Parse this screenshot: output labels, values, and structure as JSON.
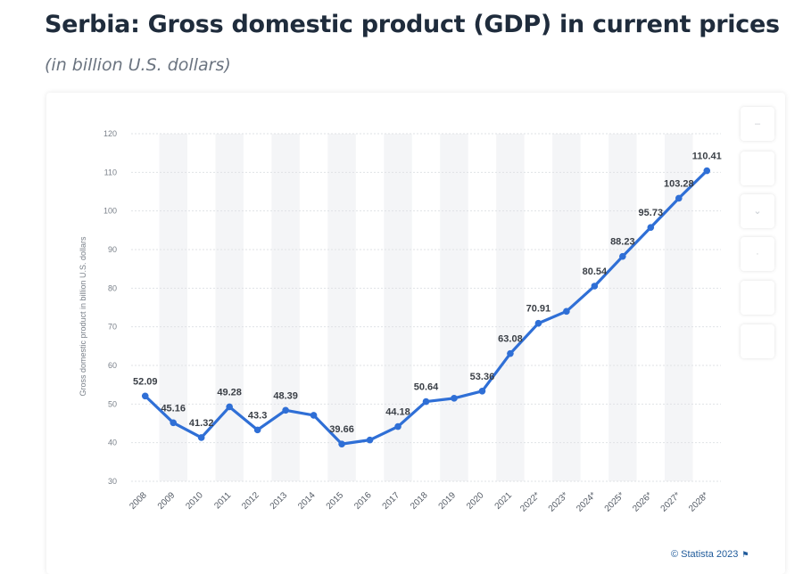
{
  "header": {
    "title": "Serbia: Gross domestic product (GDP) in current prices",
    "subtitle": "(in billion U.S. dollars)"
  },
  "chart_data": {
    "type": "line",
    "title": "Serbia: Gross domestic product (GDP) in current prices",
    "subtitle": "(in billion U.S. dollars)",
    "xlabel": "",
    "ylabel": "Gross domestic product in billion U.S. dollars",
    "ylim": [
      30,
      120
    ],
    "yticks": [
      30,
      40,
      50,
      60,
      70,
      80,
      90,
      100,
      110,
      120
    ],
    "grid": true,
    "categories": [
      "2008",
      "2009",
      "2010",
      "2011",
      "2012",
      "2013",
      "2014",
      "2015",
      "2016",
      "2017",
      "2018",
      "2019",
      "2020",
      "2021",
      "2022*",
      "2023*",
      "2024*",
      "2025*",
      "2026*",
      "2027*",
      "2028*"
    ],
    "series": [
      {
        "name": "GDP",
        "color": "#2f6fd6",
        "values": [
          52.09,
          45.16,
          41.32,
          49.28,
          43.3,
          48.39,
          47.1,
          39.66,
          40.7,
          44.18,
          50.64,
          51.5,
          53.36,
          63.08,
          70.91,
          74.0,
          80.54,
          88.23,
          95.73,
          103.28,
          110.41
        ],
        "labels": [
          "52.09",
          "45.16",
          "41.32",
          "49.28",
          "43.3",
          "48.39",
          "",
          "39.66",
          "",
          "44.18",
          "50.64",
          "",
          "53.36",
          "63.08",
          "70.91",
          "",
          "80.54",
          "88.23",
          "95.73",
          "103.28",
          "110.41"
        ]
      }
    ]
  },
  "footer": {
    "credit": "© Statista 2023",
    "flag_icon": "flag-icon"
  }
}
